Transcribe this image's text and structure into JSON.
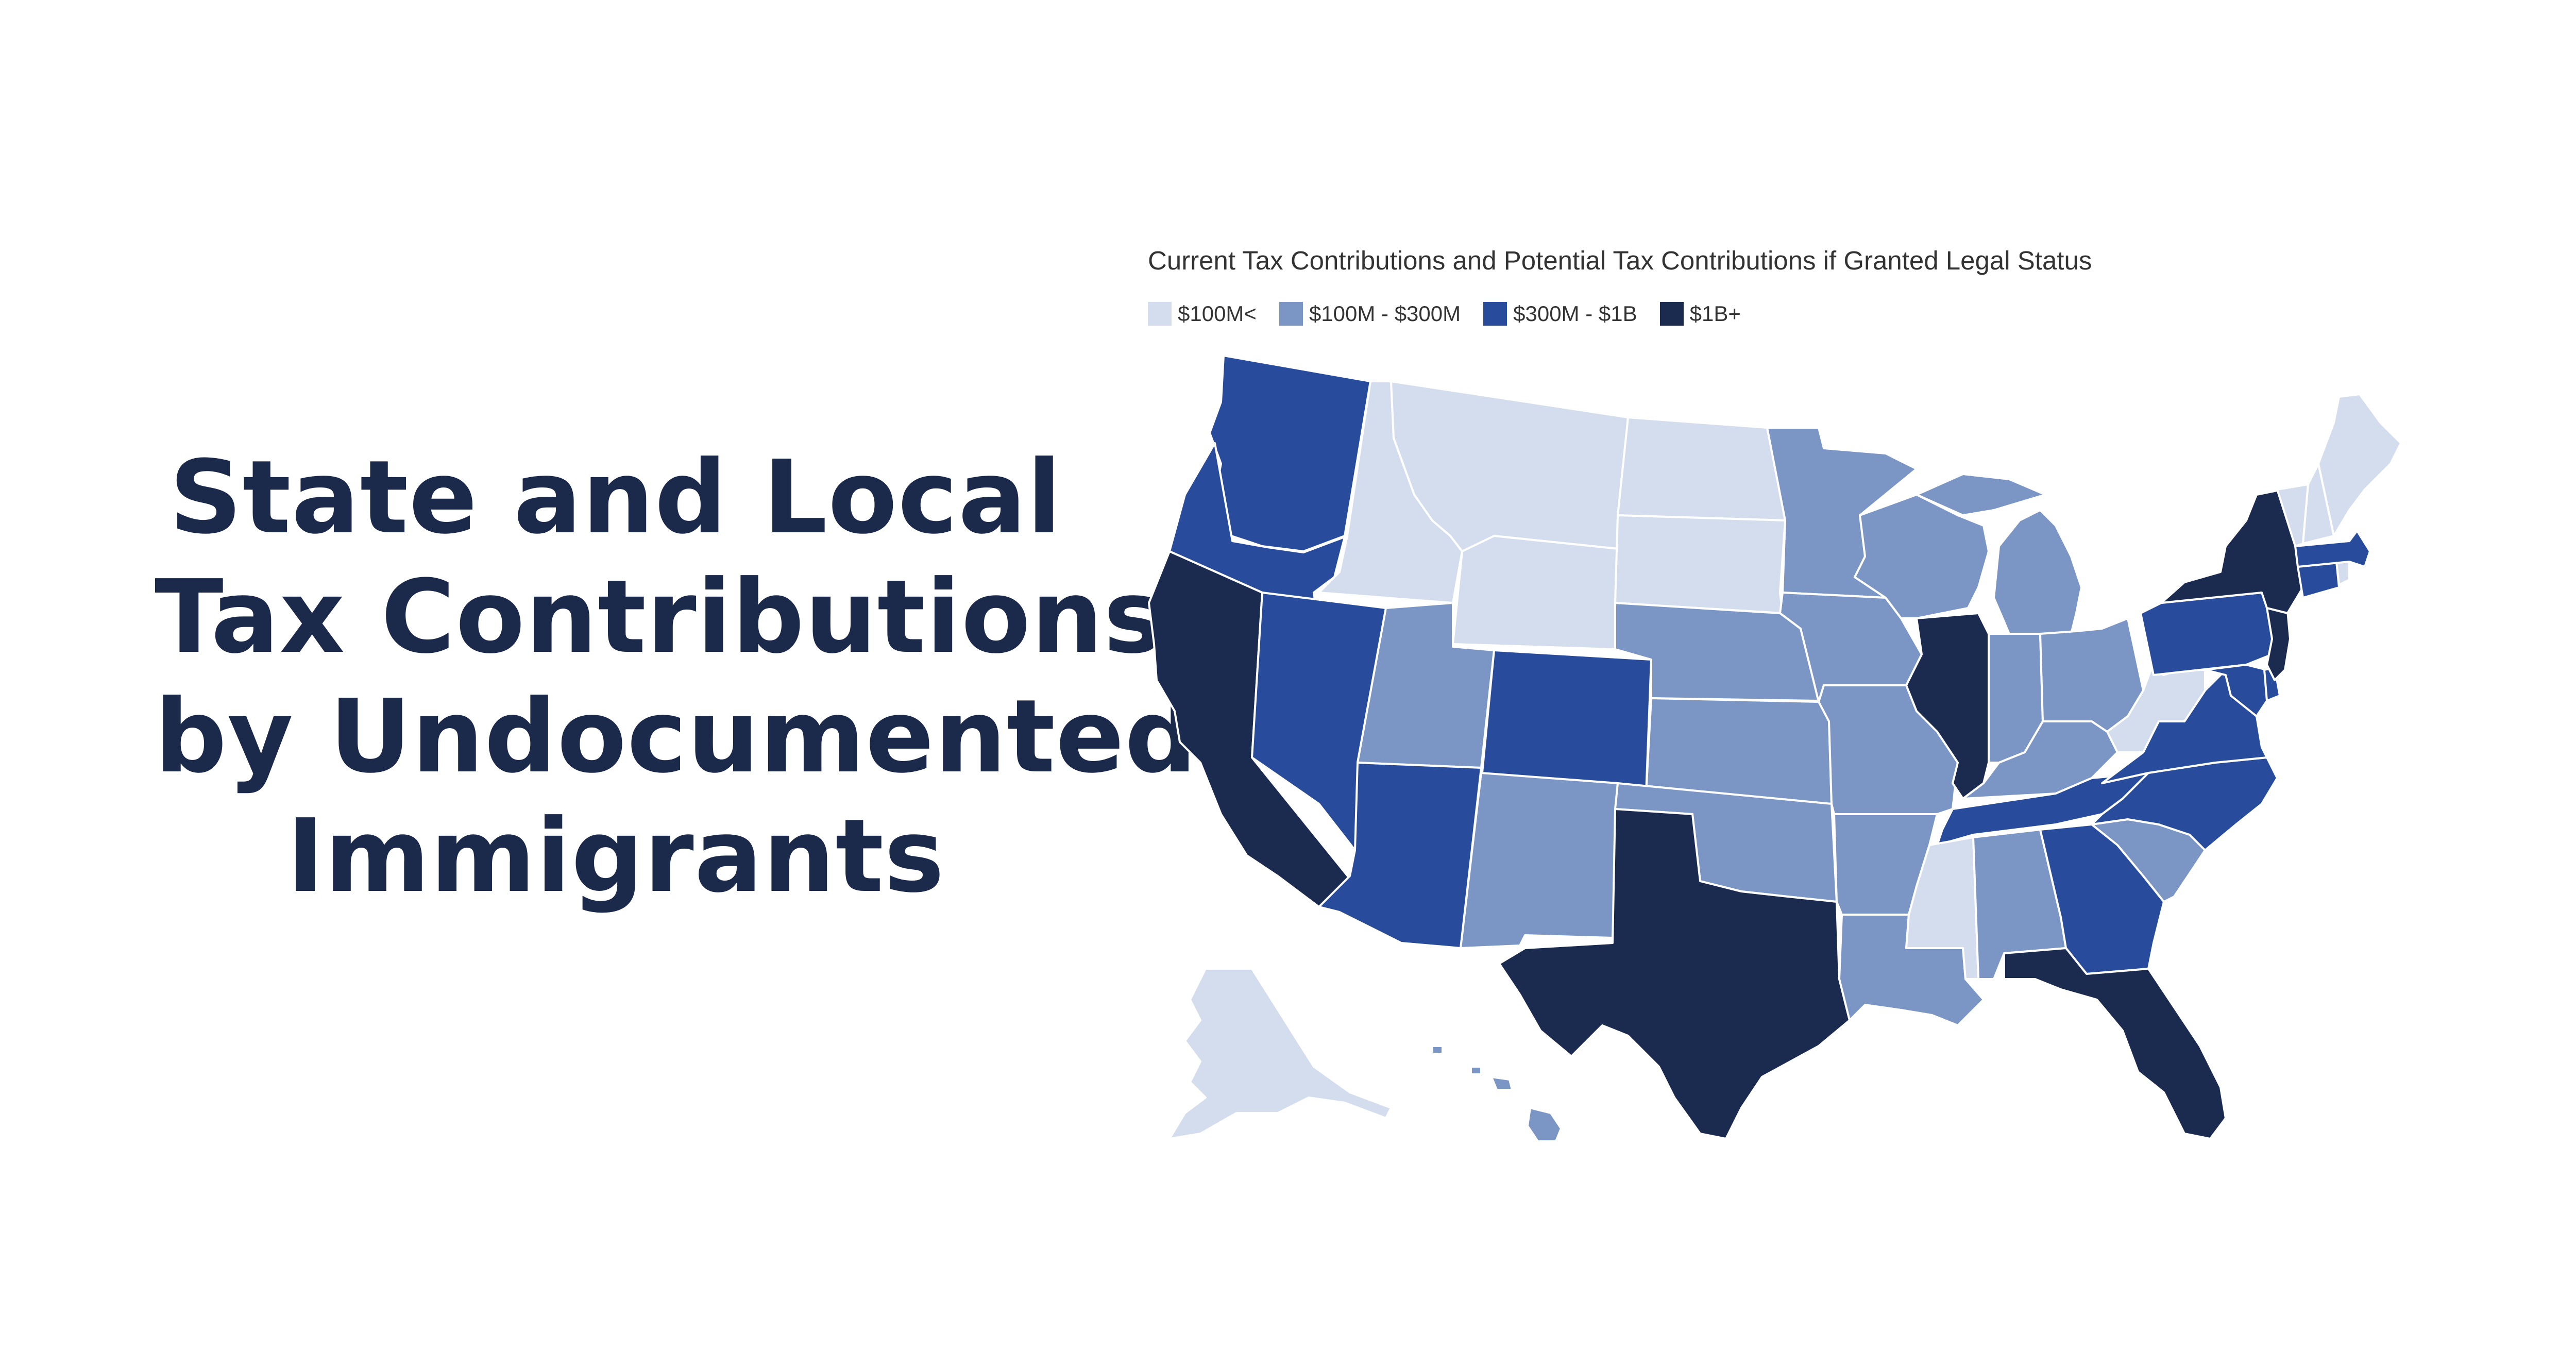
{
  "headline": {
    "line1": "State and Local",
    "line2": "Tax Contributions",
    "line3": "by Undocumented",
    "line4": "Immigrants"
  },
  "map": {
    "title": "Current Tax Contributions and Potential Tax Contributions if Granted Legal Status",
    "legend": [
      {
        "label": "$100M<",
        "color": "#d3ddee"
      },
      {
        "label": "$100M - $300M",
        "color": "#7b95c5"
      },
      {
        "label": "$300M - $1B",
        "color": "#284c9b"
      },
      {
        "label": "$1B+",
        "color": "#1b2a4f"
      }
    ],
    "states": {
      "WA": "$300M - $1B",
      "OR": "$300M - $1B",
      "CA": "$1B+",
      "NV": "$300M - $1B",
      "ID": "$100M<",
      "MT": "$100M<",
      "WY": "$100M<",
      "ND": "$100M<",
      "SD": "$100M<",
      "UT": "$100M - $300M",
      "AZ": "$300M - $1B",
      "CO": "$300M - $1B",
      "NM": "$100M - $300M",
      "NE": "$100M - $300M",
      "KS": "$100M - $300M",
      "OK": "$100M - $300M",
      "TX": "$1B+",
      "MN": "$100M - $300M",
      "IA": "$100M - $300M",
      "MO": "$100M - $300M",
      "AR": "$100M - $300M",
      "LA": "$100M - $300M",
      "WI": "$100M - $300M",
      "IL": "$1B+",
      "MI": "$100M - $300M",
      "IN": "$100M - $300M",
      "OH": "$100M - $300M",
      "KY": "$100M - $300M",
      "TN": "$300M - $1B",
      "MS": "$100M<",
      "AL": "$100M - $300M",
      "GA": "$300M - $1B",
      "FL": "$1B+",
      "SC": "$100M - $300M",
      "NC": "$300M - $1B",
      "VA": "$300M - $1B",
      "WV": "$100M<",
      "PA": "$300M - $1B",
      "NY": "$1B+",
      "NJ": "$1B+",
      "MD": "$300M - $1B",
      "DE": "$300M - $1B",
      "CT": "$300M - $1B",
      "MA": "$300M - $1B",
      "RI": "$100M<",
      "VT": "$100M<",
      "NH": "$100M<",
      "ME": "$100M<",
      "AK": "$100M<",
      "HI": "$100M - $300M"
    }
  }
}
